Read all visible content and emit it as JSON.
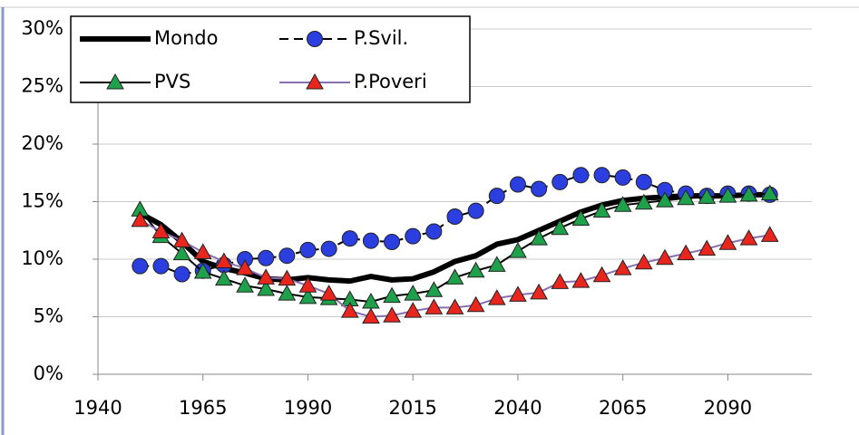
{
  "chart_data": {
    "type": "line",
    "x": [
      1950,
      1955,
      1960,
      1965,
      1970,
      1975,
      1980,
      1985,
      1990,
      1995,
      2000,
      2005,
      2010,
      2015,
      2020,
      2025,
      2030,
      2035,
      2040,
      2045,
      2050,
      2055,
      2060,
      2065,
      2070,
      2075,
      2080,
      2085,
      2090,
      2095,
      2100
    ],
    "xlim": [
      1940,
      2110
    ],
    "xticks": [
      1940,
      1965,
      1990,
      2015,
      2040,
      2065,
      2090
    ],
    "ylim": [
      0,
      30
    ],
    "yticks": [
      {
        "value": 0,
        "label": "0%"
      },
      {
        "value": 5,
        "label": "5%"
      },
      {
        "value": 10,
        "label": "10%"
      },
      {
        "value": 15,
        "label": "15%"
      },
      {
        "value": 20,
        "label": "20%"
      },
      {
        "value": 25,
        "label": "25%"
      },
      {
        "value": 30,
        "label": "30%"
      }
    ],
    "grid": true,
    "legend": "top-left",
    "series": [
      {
        "name": "Mondo",
        "color": "#000000",
        "marker": "none",
        "dash": false,
        "width": 6,
        "values": [
          14.0,
          13.0,
          11.5,
          9.8,
          9.2,
          8.8,
          8.3,
          8.2,
          8.4,
          8.2,
          8.1,
          8.5,
          8.2,
          8.3,
          8.9,
          9.8,
          10.3,
          11.3,
          11.7,
          12.5,
          13.3,
          14.1,
          14.7,
          15.1,
          15.3,
          15.4,
          15.5,
          15.5,
          15.5,
          15.6,
          15.6
        ]
      },
      {
        "name": "P.Svil.",
        "color": "#2b3fe0",
        "marker": "circle",
        "dash": true,
        "width": 2,
        "values": [
          9.4,
          9.4,
          8.7,
          9.0,
          9.5,
          10.0,
          10.1,
          10.3,
          10.8,
          10.9,
          11.8,
          11.6,
          11.5,
          12.0,
          12.4,
          13.7,
          14.2,
          15.5,
          16.5,
          16.1,
          16.7,
          17.3,
          17.3,
          17.1,
          16.7,
          16.0,
          15.7,
          15.5,
          15.7,
          15.7,
          15.6
        ]
      },
      {
        "name": "PVS",
        "color": "#1fa04a",
        "marker": "triangle",
        "dash": false,
        "width": 2,
        "values": [
          14.3,
          12.0,
          10.5,
          8.9,
          8.3,
          7.7,
          7.4,
          7.0,
          6.7,
          6.6,
          6.5,
          6.3,
          6.8,
          7.0,
          7.3,
          8.4,
          9.0,
          9.5,
          10.7,
          11.8,
          12.7,
          13.5,
          14.2,
          14.7,
          14.9,
          15.1,
          15.3,
          15.4,
          15.5,
          15.6,
          15.7
        ]
      },
      {
        "name": "P.Poveri",
        "color": "#e8261e",
        "marker": "triangle",
        "dash": false,
        "width": 2,
        "line_color": "#8a6fb0",
        "values": [
          13.4,
          12.4,
          11.6,
          10.6,
          9.8,
          9.2,
          8.4,
          8.3,
          7.7,
          7.0,
          5.5,
          5.0,
          5.1,
          5.5,
          5.8,
          5.8,
          6.0,
          6.6,
          6.9,
          7.1,
          8.0,
          8.1,
          8.6,
          9.2,
          9.7,
          10.1,
          10.5,
          10.9,
          11.4,
          11.8,
          12.1
        ]
      }
    ]
  }
}
